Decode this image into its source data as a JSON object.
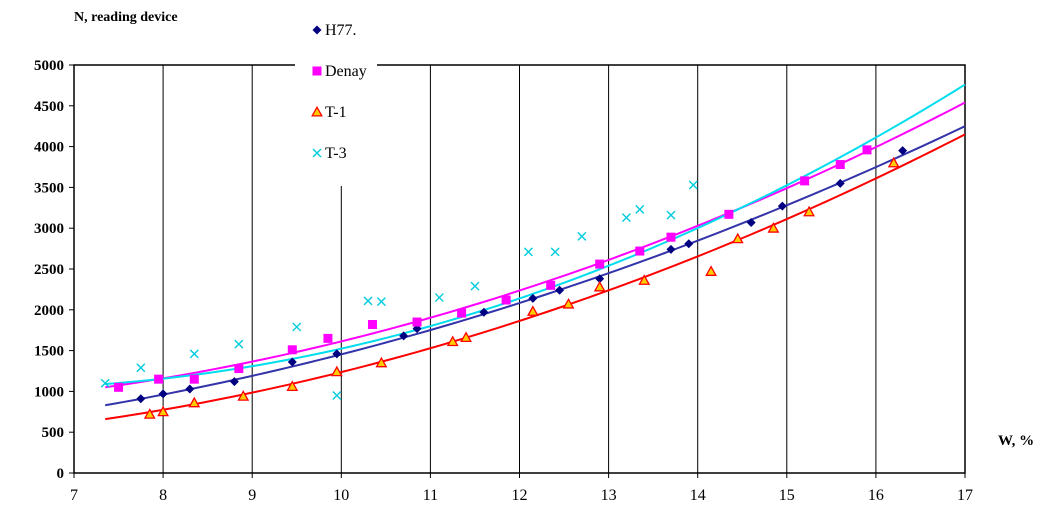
{
  "chart_data": {
    "type": "scatter",
    "ylabel": "N, reading device",
    "xlabel": "W, %",
    "xlim": [
      7,
      17
    ],
    "ylim": [
      0,
      5000
    ],
    "x_ticks": [
      "7",
      "8",
      "9",
      "10",
      "11",
      "12",
      "13",
      "14",
      "15",
      "16",
      "17"
    ],
    "y_ticks": [
      "0",
      "500",
      "1000",
      "1500",
      "2000",
      "2500",
      "3000",
      "3500",
      "4000",
      "4500",
      "5000"
    ],
    "grid": "vertical",
    "legend_placement": "top, inside plot left of center",
    "series": [
      {
        "name": "H77.",
        "marker": "diamond",
        "marker_color": "#000080",
        "line_color": "#3333aa",
        "points": [
          [
            7.75,
            910
          ],
          [
            8.0,
            970
          ],
          [
            8.3,
            1030
          ],
          [
            8.8,
            1120
          ],
          [
            9.45,
            1360
          ],
          [
            9.95,
            1460
          ],
          [
            10.7,
            1680
          ],
          [
            10.85,
            1770
          ],
          [
            11.6,
            1970
          ],
          [
            12.15,
            2140
          ],
          [
            12.45,
            2240
          ],
          [
            12.9,
            2380
          ],
          [
            13.7,
            2740
          ],
          [
            13.9,
            2810
          ],
          [
            14.6,
            3070
          ],
          [
            14.95,
            3270
          ],
          [
            15.6,
            3550
          ],
          [
            16.3,
            3950
          ]
        ],
        "trend": [
          [
            7.35,
            830
          ],
          [
            17,
            4250
          ]
        ]
      },
      {
        "name": "Denay",
        "marker": "square",
        "marker_color": "#ff00ff",
        "line_color": "#ff00ff",
        "points": [
          [
            7.5,
            1050
          ],
          [
            7.95,
            1150
          ],
          [
            8.35,
            1150
          ],
          [
            8.85,
            1280
          ],
          [
            9.45,
            1510
          ],
          [
            9.85,
            1650
          ],
          [
            10.35,
            1820
          ],
          [
            10.85,
            1850
          ],
          [
            11.35,
            1960
          ],
          [
            11.85,
            2120
          ],
          [
            12.35,
            2300
          ],
          [
            12.9,
            2560
          ],
          [
            13.35,
            2720
          ],
          [
            13.7,
            2890
          ],
          [
            14.35,
            3170
          ],
          [
            15.2,
            3580
          ],
          [
            15.6,
            3780
          ],
          [
            15.9,
            3960
          ]
        ],
        "trend": [
          [
            7.35,
            1050
          ],
          [
            17,
            4540
          ]
        ]
      },
      {
        "name": "T-1",
        "marker": "triangle",
        "marker_color": "#ff0000",
        "marker_fill": "#ffcc00",
        "line_color": "#ff0000",
        "points": [
          [
            7.85,
            720
          ],
          [
            8.0,
            750
          ],
          [
            8.35,
            860
          ],
          [
            8.9,
            940
          ],
          [
            9.45,
            1060
          ],
          [
            9.95,
            1240
          ],
          [
            10.45,
            1350
          ],
          [
            11.25,
            1610
          ],
          [
            11.4,
            1660
          ],
          [
            12.15,
            1980
          ],
          [
            12.55,
            2070
          ],
          [
            12.9,
            2280
          ],
          [
            13.4,
            2360
          ],
          [
            14.15,
            2470
          ],
          [
            14.45,
            2870
          ],
          [
            14.85,
            3000
          ],
          [
            15.25,
            3200
          ],
          [
            16.2,
            3800
          ]
        ],
        "trend": [
          [
            7.35,
            660
          ],
          [
            17,
            4150
          ]
        ]
      },
      {
        "name": "T-3",
        "marker": "x",
        "marker_color": "#00ccdd",
        "line_color": "#00ddee",
        "points": [
          [
            7.35,
            1100
          ],
          [
            7.75,
            1290
          ],
          [
            8.35,
            1460
          ],
          [
            8.85,
            1580
          ],
          [
            9.5,
            1790
          ],
          [
            9.95,
            950
          ],
          [
            10.3,
            2110
          ],
          [
            10.45,
            2100
          ],
          [
            11.1,
            2150
          ],
          [
            11.5,
            2290
          ],
          [
            12.1,
            2710
          ],
          [
            12.4,
            2710
          ],
          [
            12.7,
            2900
          ],
          [
            13.2,
            3130
          ],
          [
            13.35,
            3230
          ],
          [
            13.7,
            3160
          ],
          [
            13.95,
            3530
          ]
        ],
        "trend": [
          [
            7.35,
            1090
          ],
          [
            17,
            4760
          ]
        ]
      }
    ]
  }
}
